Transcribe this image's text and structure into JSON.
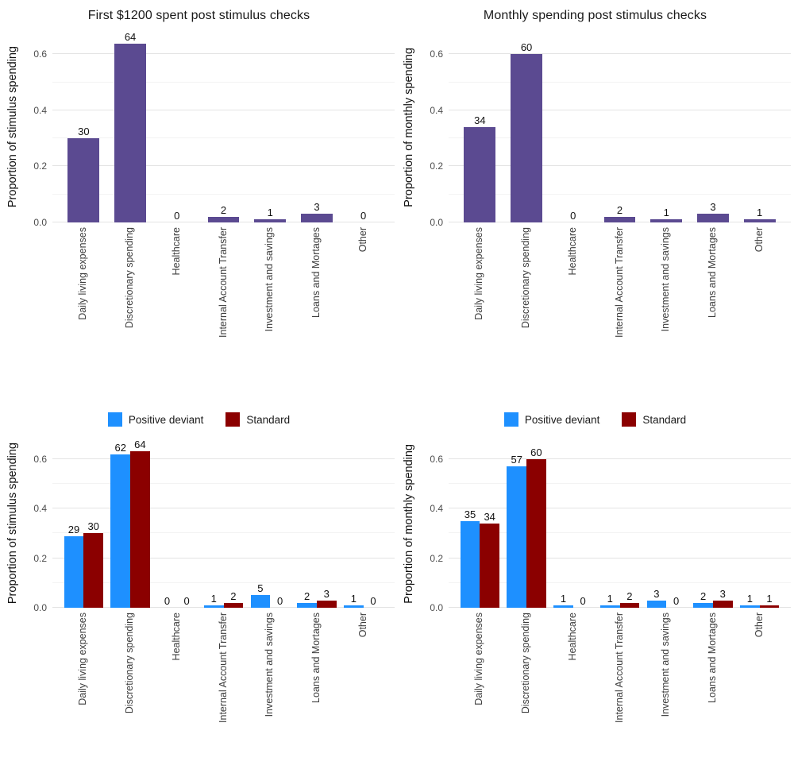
{
  "page": {
    "background": "#ffffff"
  },
  "palette": {
    "purple": "#5b4a91",
    "blue": "#1e90ff",
    "dark_red": "#8b0000",
    "major_grid": "#e3e3e3",
    "minor_grid": "#f3f3f3",
    "title_text": "#1a1a1a",
    "tick_text": "#4d4d4d"
  },
  "chart_data": [
    {
      "type": "bar",
      "title": "First $1200 spent post stimulus checks",
      "ylabel": "Proportion of stimulus spending",
      "categories": [
        "Daily living expenses",
        "Discretionary spending",
        "Healthcare",
        "Internal Account Transfer",
        "Investment and savings",
        "Loans and Mortages",
        "Other"
      ],
      "values_pct": [
        30,
        64,
        0,
        2,
        1,
        3,
        0
      ],
      "bar_color": "#5b4a91",
      "yticks": [
        0,
        0.2,
        0.4,
        0.6
      ],
      "ytick_labels": [
        "0.0",
        "0.2",
        "0.4",
        "0.6"
      ],
      "yminor": [
        0.1,
        0.3,
        0.5
      ],
      "ylim": [
        0,
        0.68
      ],
      "grid": true,
      "legend_position": "none"
    },
    {
      "type": "bar",
      "title": "Monthly spending post stimulus checks",
      "ylabel": "Proportion of monthly spending",
      "categories": [
        "Daily living expenses",
        "Discretionary spending",
        "Healthcare",
        "Internal Account Transfer",
        "Investment and savings",
        "Loans and Mortages",
        "Other"
      ],
      "values_pct": [
        34,
        60,
        0,
        2,
        1,
        3,
        1
      ],
      "bar_color": "#5b4a91",
      "yticks": [
        0,
        0.2,
        0.4,
        0.6
      ],
      "ytick_labels": [
        "0.0",
        "0.2",
        "0.4",
        "0.6"
      ],
      "yminor": [
        0.1,
        0.3,
        0.5
      ],
      "ylim": [
        0,
        0.68
      ],
      "grid": true,
      "legend_position": "none"
    },
    {
      "type": "bar",
      "title": null,
      "ylabel": "Proportion of stimulus spending",
      "categories": [
        "Daily living expenses",
        "Discretionary spending",
        "Healthcare",
        "Internal Account Transfer",
        "Investment and savings",
        "Loans and Mortages",
        "Other"
      ],
      "series": [
        {
          "name": "Positive deviant",
          "color": "#1e90ff",
          "values_pct": [
            29,
            62,
            0,
            1,
            5,
            2,
            1
          ]
        },
        {
          "name": "Standard",
          "color": "#8b0000",
          "values_pct": [
            30,
            64,
            0,
            2,
            0,
            3,
            0
          ]
        }
      ],
      "yticks": [
        0,
        0.2,
        0.4,
        0.6
      ],
      "ytick_labels": [
        "0.0",
        "0.2",
        "0.4",
        "0.6"
      ],
      "yminor": [
        0.1,
        0.3,
        0.5
      ],
      "ylim": [
        0,
        0.68
      ],
      "grid": true,
      "legend_position": "top"
    },
    {
      "type": "bar",
      "title": null,
      "ylabel": "Proportion of monthly spending",
      "categories": [
        "Daily living expenses",
        "Discretionary spending",
        "Healthcare",
        "Internal Account Transfer",
        "Investment and savings",
        "Loans and Mortages",
        "Other"
      ],
      "series": [
        {
          "name": "Positive deviant",
          "color": "#1e90ff",
          "values_pct": [
            35,
            57,
            1,
            1,
            3,
            2,
            1
          ]
        },
        {
          "name": "Standard",
          "color": "#8b0000",
          "values_pct": [
            34,
            60,
            0,
            2,
            0,
            3,
            1
          ]
        }
      ],
      "yticks": [
        0,
        0.2,
        0.4,
        0.6
      ],
      "ytick_labels": [
        "0.0",
        "0.2",
        "0.4",
        "0.6"
      ],
      "yminor": [
        0.1,
        0.3,
        0.5
      ],
      "ylim": [
        0,
        0.68
      ],
      "grid": true,
      "legend_position": "top"
    }
  ]
}
